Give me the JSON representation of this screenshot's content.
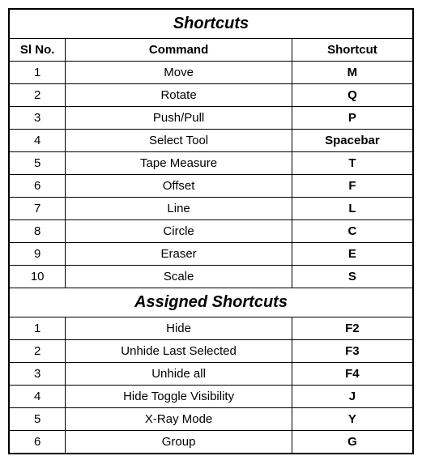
{
  "table": {
    "section1": {
      "title": "Shortcuts",
      "columns": [
        "Sl No.",
        "Command",
        "Shortcut"
      ],
      "rows": [
        [
          "1",
          "Move",
          "M"
        ],
        [
          "2",
          "Rotate",
          "Q"
        ],
        [
          "3",
          "Push/Pull",
          "P"
        ],
        [
          "4",
          "Select Tool",
          "Spacebar"
        ],
        [
          "5",
          "Tape Measure",
          "T"
        ],
        [
          "6",
          "Offset",
          "F"
        ],
        [
          "7",
          "Line",
          "L"
        ],
        [
          "8",
          "Circle",
          "C"
        ],
        [
          "9",
          "Eraser",
          "E"
        ],
        [
          "10",
          "Scale",
          "S"
        ]
      ]
    },
    "section2": {
      "title": "Assigned Shortcuts",
      "rows": [
        [
          "1",
          "Hide",
          "F2"
        ],
        [
          "2",
          "Unhide Last Selected",
          "F3"
        ],
        [
          "3",
          "Unhide all",
          "F4"
        ],
        [
          "4",
          "Hide Toggle Visibility",
          "J"
        ],
        [
          "5",
          "X-Ray Mode",
          "Y"
        ],
        [
          "6",
          "Group",
          "G"
        ]
      ]
    },
    "styling": {
      "border_color": "#000000",
      "background_color": "#ffffff",
      "text_color": "#000000",
      "title_fontsize": 20,
      "header_fontsize": 15,
      "cell_fontsize": 15,
      "col_widths_pct": [
        14,
        56,
        30
      ]
    }
  }
}
